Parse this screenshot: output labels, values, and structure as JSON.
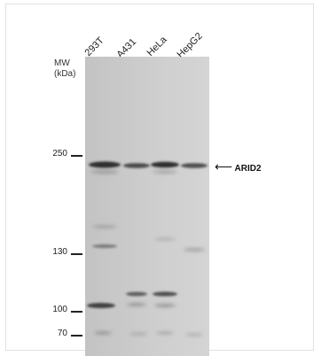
{
  "lanes": [
    "293T",
    "A431",
    "HeLa",
    "HepG2"
  ],
  "mw": {
    "title_line1": "MW",
    "title_line2": "(kDa)",
    "markers": [
      {
        "label": "250"
      },
      {
        "label": "130"
      },
      {
        "label": "100"
      },
      {
        "label": "70"
      }
    ]
  },
  "target": {
    "arrow": "⟵",
    "label": "ARID2"
  },
  "colors": {
    "membrane": "#c9c9c9",
    "band": "#3a3a3a"
  }
}
